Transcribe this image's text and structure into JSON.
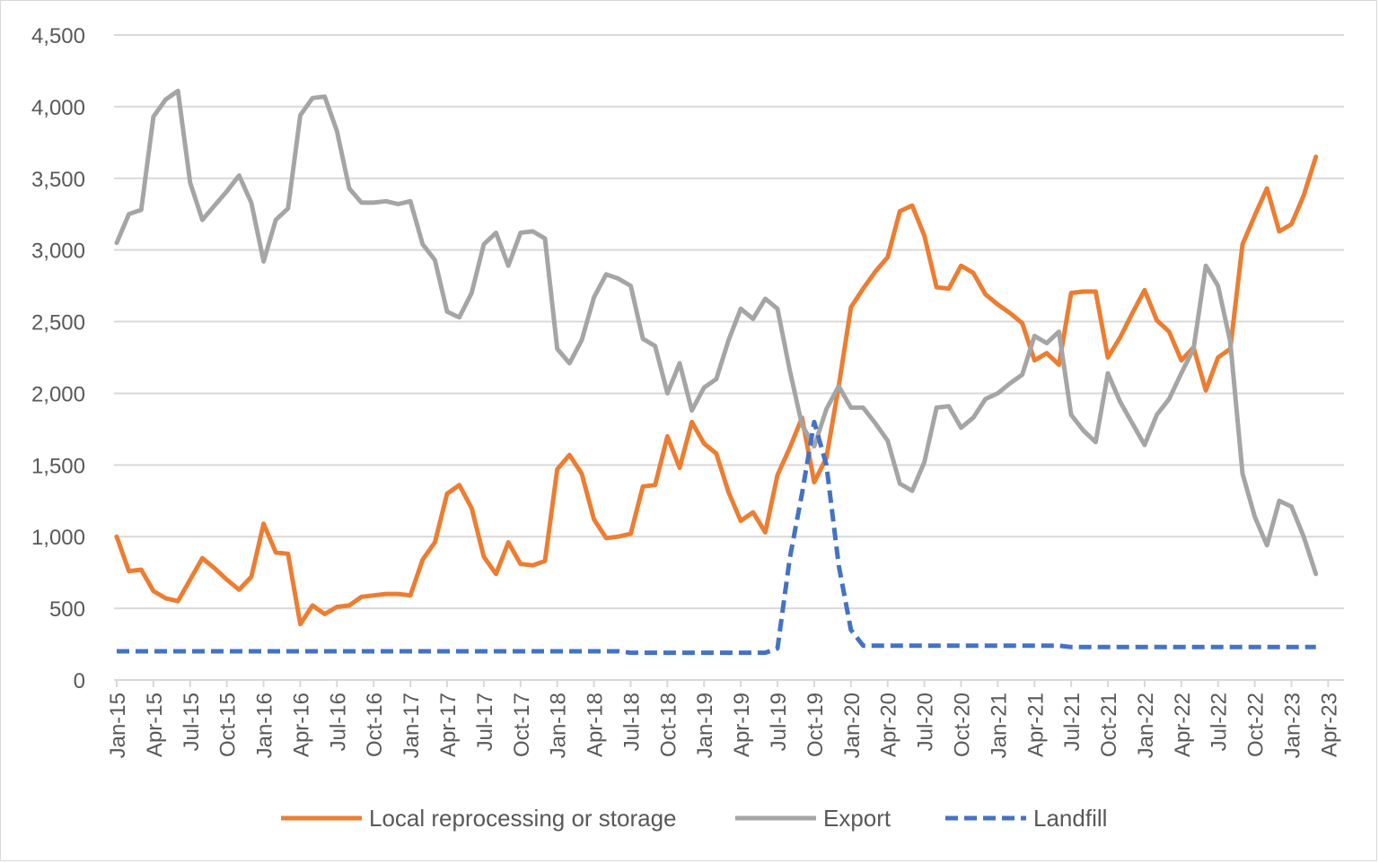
{
  "chart_data": {
    "type": "line",
    "title": "",
    "xlabel": "",
    "ylabel": "",
    "ylim": [
      0,
      4500
    ],
    "y_ticks": [
      "0",
      "500",
      "1,000",
      "1,500",
      "2,000",
      "2,500",
      "3,000",
      "3,500",
      "4,000",
      "4,500"
    ],
    "x_tick_labels": [
      "Jan-15",
      "Apr-15",
      "Jul-15",
      "Oct-15",
      "Jan-16",
      "Apr-16",
      "Jul-16",
      "Oct-16",
      "Jan-17",
      "Apr-17",
      "Jul-17",
      "Oct-17",
      "Jan-18",
      "Apr-18",
      "Jul-18",
      "Oct-18",
      "Jan-19",
      "Apr-19",
      "Jul-19",
      "Oct-19",
      "Jan-20",
      "Apr-20",
      "Jul-20",
      "Oct-20",
      "Jan-21",
      "Apr-21",
      "Jul-21",
      "Oct-21",
      "Jan-22",
      "Apr-22",
      "Jul-22",
      "Oct-22",
      "Jan-23",
      "Apr-23"
    ],
    "grid": true,
    "legend_position": "bottom",
    "x_start": "Jan-15",
    "series": [
      {
        "name": "Local reprocessing or storage",
        "color": "#ED7D31",
        "dash": false,
        "values": [
          1000,
          760,
          770,
          620,
          570,
          550,
          700,
          850,
          780,
          700,
          630,
          720,
          1090,
          890,
          880,
          390,
          520,
          460,
          510,
          520,
          580,
          590,
          600,
          600,
          590,
          840,
          960,
          1300,
          1360,
          1200,
          860,
          740,
          960,
          810,
          800,
          830,
          1470,
          1570,
          1440,
          1120,
          990,
          1000,
          1020,
          1350,
          1360,
          1700,
          1480,
          1800,
          1650,
          1580,
          1310,
          1110,
          1170,
          1030,
          1430,
          1620,
          1830,
          1380,
          1550,
          2050,
          2600,
          2730,
          2850,
          2950,
          3270,
          3310,
          3100,
          2740,
          2730,
          2890,
          2840,
          2690,
          2620,
          2560,
          2490,
          2230,
          2280,
          2200,
          2700,
          2710,
          2710,
          2250,
          2390,
          2560,
          2720,
          2510,
          2430,
          2230,
          2320,
          2020,
          2250,
          2310,
          3040,
          3240,
          3430,
          3130,
          3180,
          3380,
          3650
        ]
      },
      {
        "name": "Export",
        "color": "#A5A5A5",
        "dash": false,
        "values": [
          3050,
          3250,
          3280,
          3930,
          4050,
          4110,
          3470,
          3210,
          3310,
          3410,
          3520,
          3330,
          2920,
          3210,
          3290,
          3940,
          4060,
          4070,
          3830,
          3430,
          3330,
          3330,
          3340,
          3320,
          3340,
          3040,
          2930,
          2570,
          2530,
          2700,
          3040,
          3120,
          2890,
          3120,
          3130,
          3080,
          2310,
          2210,
          2370,
          2670,
          2830,
          2800,
          2750,
          2380,
          2330,
          2000,
          2210,
          1880,
          2040,
          2100,
          2370,
          2590,
          2520,
          2660,
          2590,
          2160,
          1780,
          1630,
          1890,
          2050,
          1900,
          1900,
          1790,
          1670,
          1370,
          1320,
          1520,
          1900,
          1910,
          1760,
          1830,
          1960,
          2000,
          2070,
          2130,
          2400,
          2350,
          2430,
          1850,
          1740,
          1660,
          2140,
          1940,
          1790,
          1640,
          1850,
          1960,
          2140,
          2310,
          2890,
          2750,
          2360,
          1440,
          1140,
          940,
          1250,
          1210,
          1000,
          740
        ]
      },
      {
        "name": "Landfill",
        "color": "#4472C4",
        "dash": true,
        "values": [
          200,
          200,
          200,
          200,
          200,
          200,
          200,
          200,
          200,
          200,
          200,
          200,
          200,
          200,
          200,
          200,
          200,
          200,
          200,
          200,
          200,
          200,
          200,
          200,
          200,
          200,
          200,
          200,
          200,
          200,
          200,
          200,
          200,
          200,
          200,
          200,
          200,
          200,
          200,
          200,
          200,
          200,
          190,
          190,
          190,
          190,
          190,
          190,
          190,
          190,
          190,
          190,
          190,
          190,
          220,
          850,
          1300,
          1800,
          1500,
          800,
          350,
          240,
          240,
          240,
          240,
          240,
          240,
          240,
          240,
          240,
          240,
          240,
          240,
          240,
          240,
          240,
          240,
          240,
          230,
          230,
          230,
          230,
          230,
          230,
          230,
          230,
          230,
          230,
          230,
          230,
          230,
          230,
          230,
          230,
          230,
          230,
          230,
          230,
          230
        ]
      }
    ]
  }
}
